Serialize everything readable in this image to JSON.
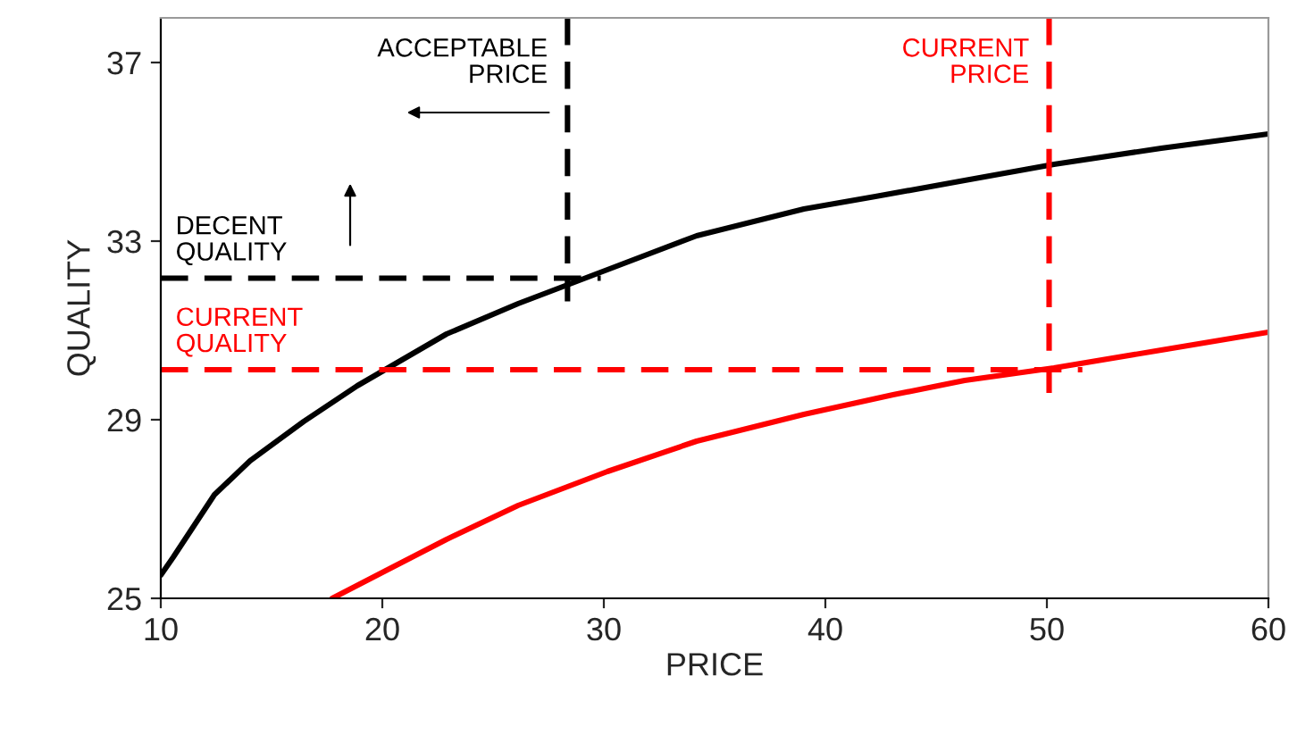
{
  "chart_data": {
    "type": "line",
    "xlabel": "PRICE",
    "ylabel": "QUALITY",
    "xlim": [
      10,
      60
    ],
    "xticks": [
      10,
      20,
      30,
      40,
      50,
      60
    ],
    "ylim": [
      25,
      38
    ],
    "yticks": [
      25,
      29,
      33,
      37
    ],
    "grid": false,
    "legend": false,
    "series": [
      {
        "color": "#000000",
        "x": [
          10,
          10.56,
          12.42,
          14.03,
          16.45,
          18.87,
          22.9,
          26.13,
          30.16,
          34.19,
          39.03,
          42.26,
          46.29,
          50.32,
          55.16,
          60
        ],
        "values": [
          25.52,
          25.92,
          27.32,
          28.08,
          28.96,
          29.76,
          30.92,
          31.6,
          32.36,
          33.12,
          33.72,
          34.0,
          34.36,
          34.72,
          35.08,
          35.4
        ]
      },
      {
        "color": "#ff0000",
        "x": [
          17.74,
          20.08,
          22.9,
          26.13,
          30.16,
          34.19,
          39.03,
          43.06,
          46.29,
          50.32,
          55.16,
          60
        ],
        "values": [
          25.0,
          25.6,
          26.32,
          27.08,
          27.84,
          28.52,
          29.12,
          29.56,
          29.88,
          30.16,
          30.56,
          30.96
        ]
      }
    ],
    "ref_lines": [
      {
        "axis": "x",
        "value": 28.36,
        "label": "ACCEPTABLE\nPRICE",
        "color": "#000000",
        "line_style": "dashed"
      },
      {
        "axis": "x",
        "value": 50.1,
        "label": "CURRENT\nPRICE",
        "color": "#ff0000",
        "line_style": "dashed"
      },
      {
        "axis": "y",
        "value": 32.17,
        "label": "DECENT\nQUALITY",
        "color": "#000000",
        "line_style": "dashed"
      },
      {
        "axis": "y",
        "value": 30.12,
        "label": "CURRENT\nQUALITY",
        "color": "#ff0000",
        "line_style": "dashed"
      }
    ]
  }
}
